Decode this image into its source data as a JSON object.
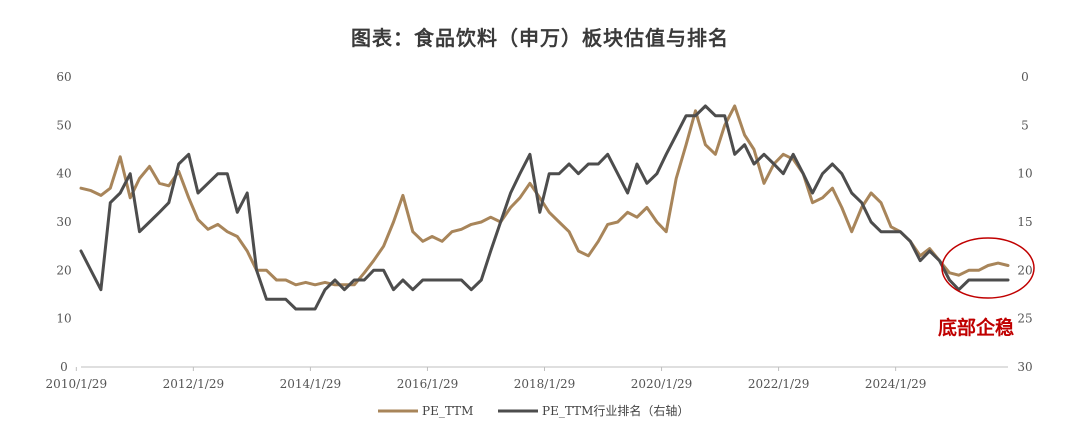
{
  "chart_data": {
    "type": "line",
    "title": "图表：食品饮料（申万）板块估值与排名",
    "x_ticks": [
      "2010/1/29",
      "2012/1/29",
      "2014/1/29",
      "2016/1/29",
      "2018/1/29",
      "2020/1/29",
      "2022/1/29",
      "2024/1/29"
    ],
    "x_range": [
      2010.08,
      2025.92
    ],
    "y_left": {
      "min": 0,
      "max": 60,
      "ticks": [
        0,
        10,
        20,
        30,
        40,
        50,
        60
      ]
    },
    "y_right": {
      "min": 0,
      "max": 30,
      "ticks": [
        0,
        5,
        10,
        15,
        20,
        25,
        30
      ],
      "inverted": true
    },
    "legend_position": "bottom",
    "annotation": {
      "text": "底部企稳",
      "color": "#c00000"
    },
    "series": [
      {
        "name": "PE_TTM",
        "axis": "left",
        "color": "#a8855a",
        "x": [
          2010.08,
          2010.25,
          2010.42,
          2010.58,
          2010.75,
          2010.92,
          2011.08,
          2011.25,
          2011.42,
          2011.58,
          2011.75,
          2011.92,
          2012.08,
          2012.25,
          2012.42,
          2012.58,
          2012.75,
          2012.92,
          2013.08,
          2013.25,
          2013.42,
          2013.58,
          2013.75,
          2013.92,
          2014.08,
          2014.25,
          2014.42,
          2014.58,
          2014.75,
          2014.92,
          2015.08,
          2015.25,
          2015.42,
          2015.58,
          2015.75,
          2015.92,
          2016.08,
          2016.25,
          2016.42,
          2016.58,
          2016.75,
          2016.92,
          2017.08,
          2017.25,
          2017.42,
          2017.58,
          2017.75,
          2017.92,
          2018.08,
          2018.25,
          2018.42,
          2018.58,
          2018.75,
          2018.92,
          2019.08,
          2019.25,
          2019.42,
          2019.58,
          2019.75,
          2019.92,
          2020.08,
          2020.25,
          2020.42,
          2020.58,
          2020.75,
          2020.92,
          2021.08,
          2021.25,
          2021.42,
          2021.58,
          2021.75,
          2021.92,
          2022.08,
          2022.25,
          2022.42,
          2022.58,
          2022.75,
          2022.92,
          2023.08,
          2023.25,
          2023.42,
          2023.58,
          2023.75,
          2023.92,
          2024.08,
          2024.25,
          2024.42,
          2024.58,
          2024.75,
          2024.92,
          2025.08,
          2025.25,
          2025.42,
          2025.58,
          2025.75,
          2025.92
        ],
        "y": [
          37,
          36.5,
          35.5,
          37,
          43.5,
          35,
          39,
          41.5,
          38,
          37.5,
          40.5,
          35,
          30.5,
          28.5,
          29.5,
          28,
          27,
          24,
          20,
          20,
          18,
          18,
          17,
          17.5,
          17,
          17.5,
          17,
          17,
          17,
          19.5,
          22,
          25,
          30,
          35.5,
          28,
          26,
          27,
          26,
          28,
          28.5,
          29.5,
          30,
          31,
          30,
          33,
          35,
          38,
          35,
          32,
          30,
          28,
          24,
          23,
          26,
          29.5,
          30,
          32,
          31,
          33,
          30,
          28,
          39,
          46,
          53,
          46,
          44,
          50,
          54,
          48,
          45,
          38,
          42,
          44,
          43,
          40,
          34,
          35,
          37,
          33,
          28,
          33,
          36,
          34,
          29,
          28,
          26,
          23,
          24.5,
          22,
          19.5,
          19,
          20,
          20,
          21,
          21.5,
          21
        ]
      },
      {
        "name": "PE_TTM行业排名（右轴）",
        "axis": "right",
        "color": "#4d4d4d",
        "x": [
          2010.08,
          2010.25,
          2010.42,
          2010.58,
          2010.75,
          2010.92,
          2011.08,
          2011.25,
          2011.42,
          2011.58,
          2011.75,
          2011.92,
          2012.08,
          2012.25,
          2012.42,
          2012.58,
          2012.75,
          2012.92,
          2013.08,
          2013.25,
          2013.42,
          2013.58,
          2013.75,
          2013.92,
          2014.08,
          2014.25,
          2014.42,
          2014.58,
          2014.75,
          2014.92,
          2015.08,
          2015.25,
          2015.42,
          2015.58,
          2015.75,
          2015.92,
          2016.08,
          2016.25,
          2016.42,
          2016.58,
          2016.75,
          2016.92,
          2017.08,
          2017.25,
          2017.42,
          2017.58,
          2017.75,
          2017.92,
          2018.08,
          2018.25,
          2018.42,
          2018.58,
          2018.75,
          2018.92,
          2019.08,
          2019.25,
          2019.42,
          2019.58,
          2019.75,
          2019.92,
          2020.08,
          2020.25,
          2020.42,
          2020.58,
          2020.75,
          2020.92,
          2021.08,
          2021.25,
          2021.42,
          2021.58,
          2021.75,
          2021.92,
          2022.08,
          2022.25,
          2022.42,
          2022.58,
          2022.75,
          2022.92,
          2023.08,
          2023.25,
          2023.42,
          2023.58,
          2023.75,
          2023.92,
          2024.08,
          2024.25,
          2024.42,
          2024.58,
          2024.75,
          2024.92,
          2025.08,
          2025.25,
          2025.42,
          2025.58,
          2025.75,
          2025.92
        ],
        "y": [
          18,
          20,
          22,
          13,
          12,
          10,
          16,
          15,
          14,
          13,
          9,
          8,
          12,
          11,
          10,
          10,
          14,
          12,
          20,
          23,
          23,
          23,
          24,
          24,
          24,
          22,
          21,
          22,
          21,
          21,
          20,
          20,
          22,
          21,
          22,
          21,
          21,
          21,
          21,
          21,
          22,
          21,
          18,
          15,
          12,
          10,
          8,
          14,
          10,
          10,
          9,
          10,
          9,
          9,
          8,
          10,
          12,
          9,
          11,
          10,
          8,
          6,
          4,
          4,
          3,
          4,
          4,
          8,
          7,
          9,
          8,
          9,
          10,
          8,
          10,
          12,
          10,
          9,
          10,
          12,
          13,
          15,
          16,
          16,
          16,
          17,
          19,
          18,
          19,
          21,
          22,
          21,
          21,
          21,
          21,
          21
        ]
      }
    ]
  }
}
